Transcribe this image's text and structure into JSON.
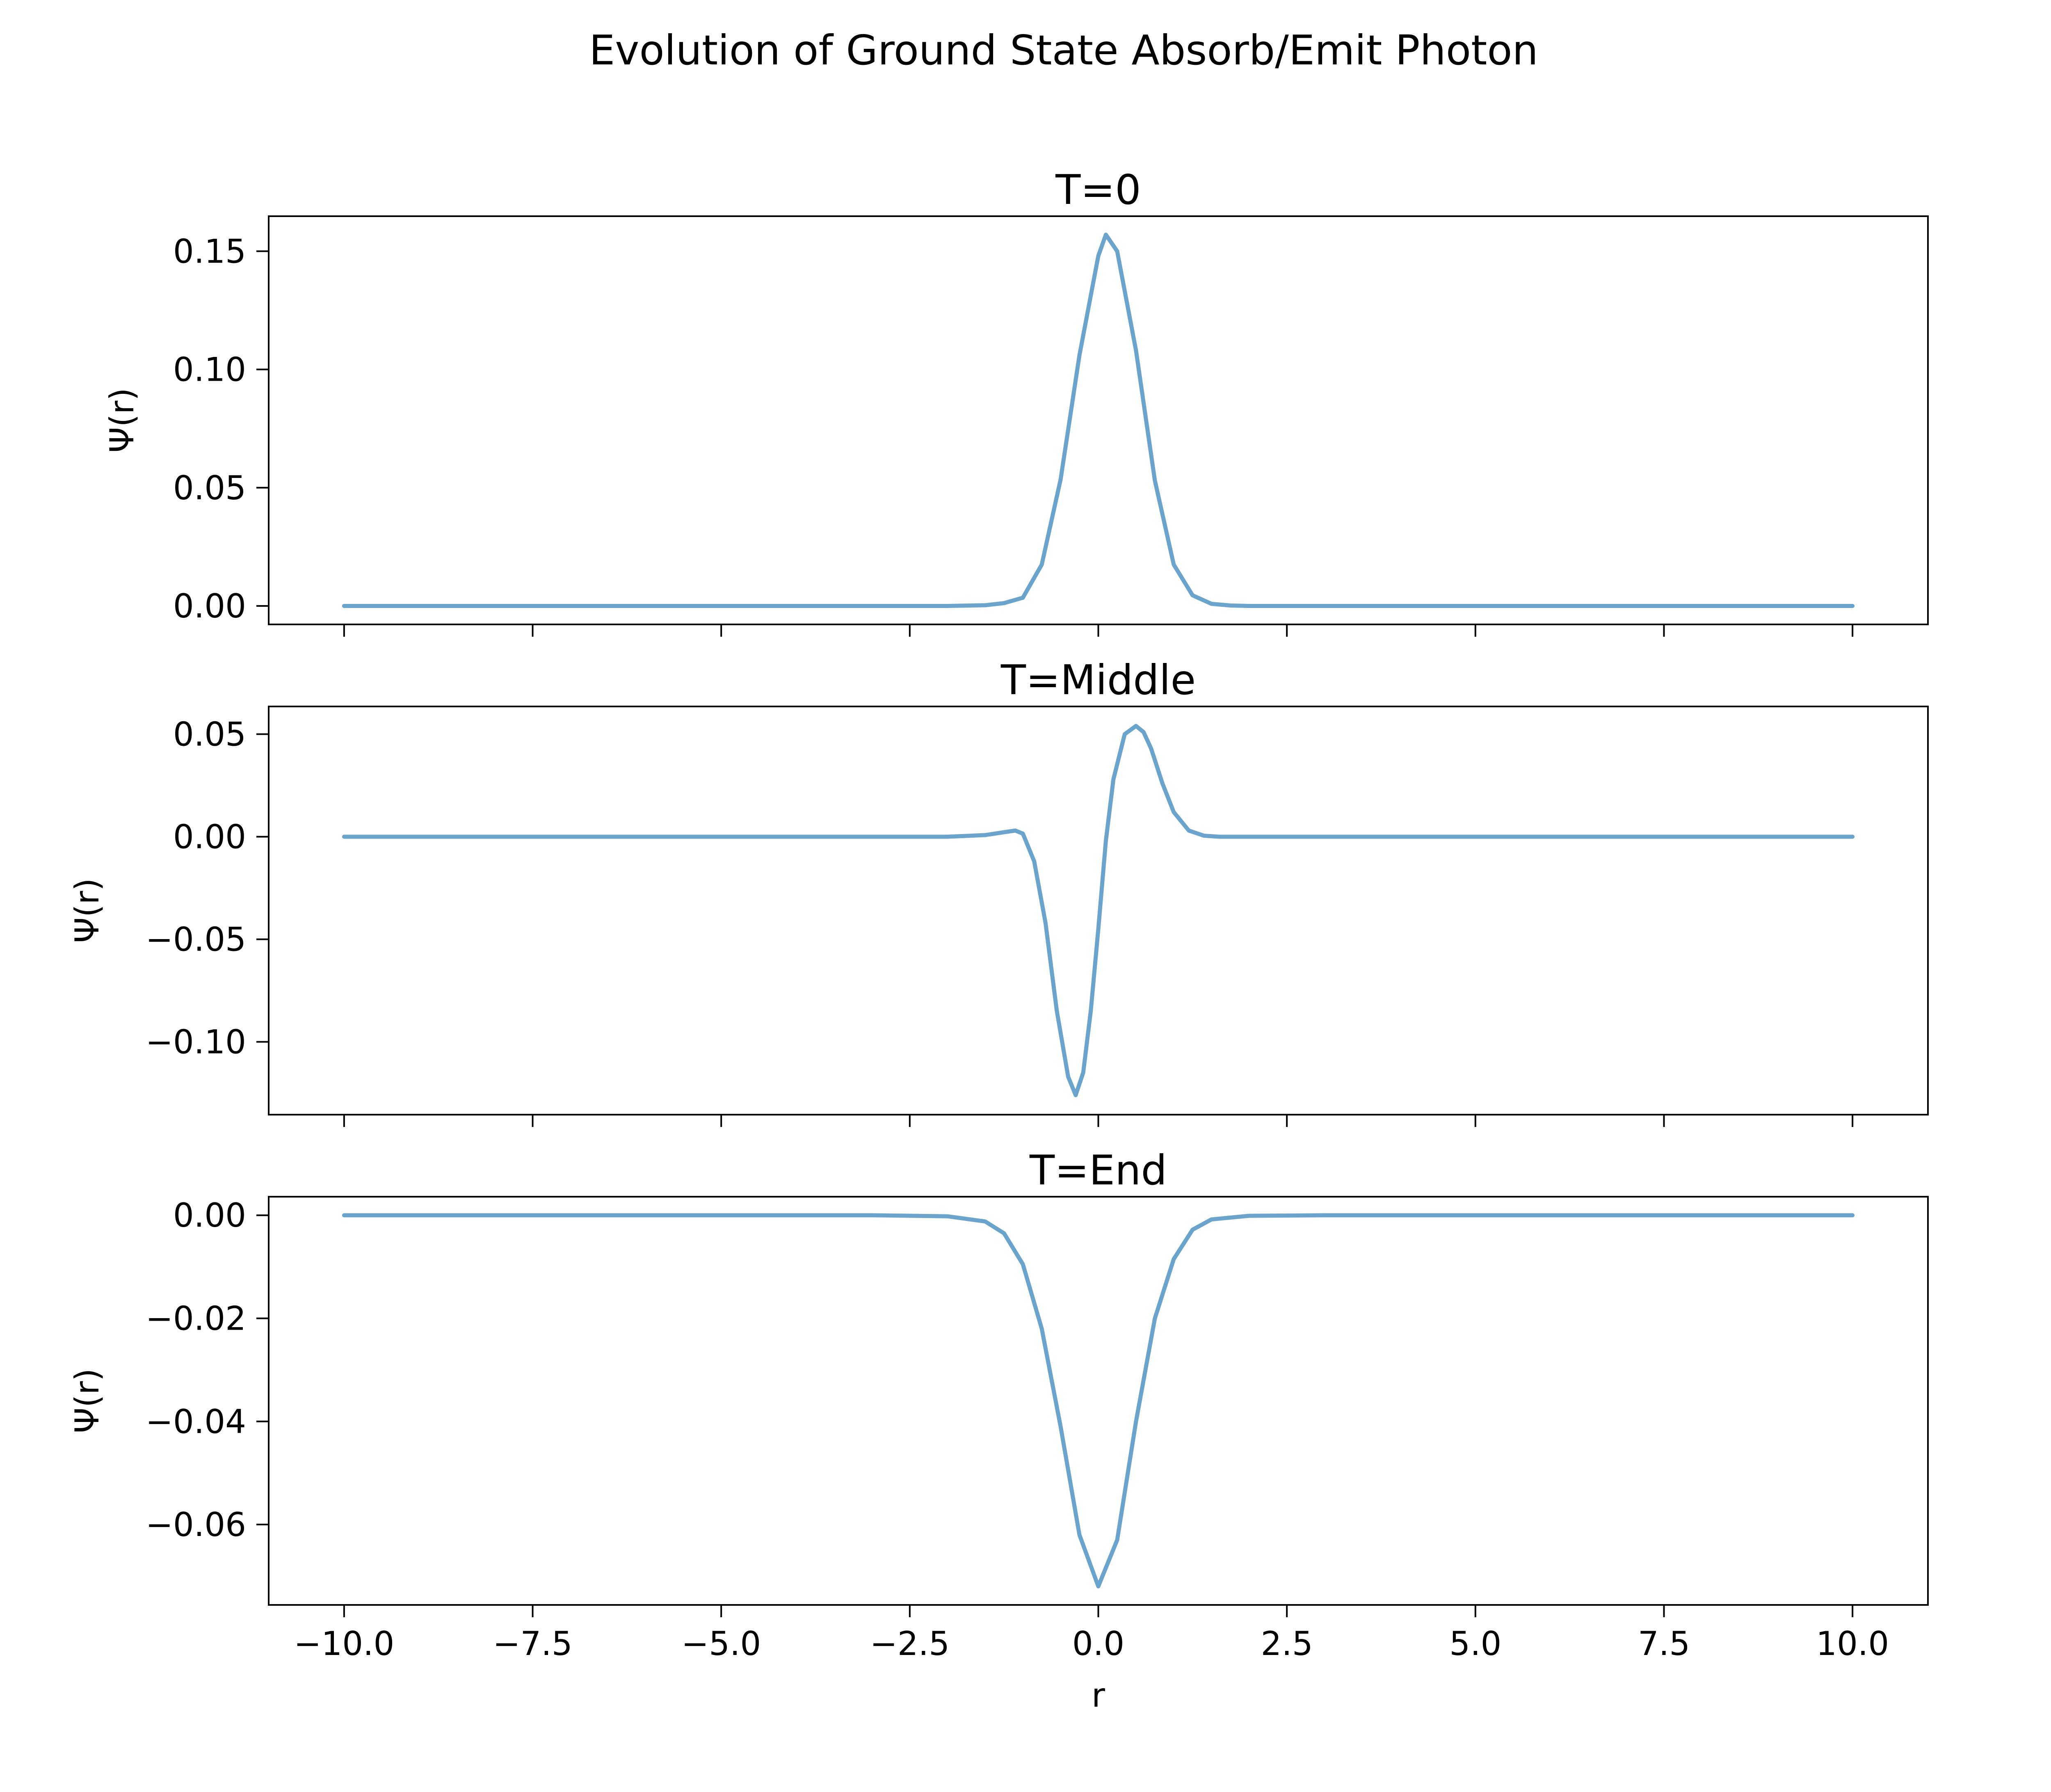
{
  "figure": {
    "suptitle": "Evolution of Ground State Absorb/Emit Photon",
    "line_color": "#6aa3cb",
    "background": "#ffffff"
  },
  "chart_data": [
    {
      "type": "line",
      "title": "T=0",
      "xlabel": "",
      "ylabel": "Ψ(r)",
      "xlim": [
        -11.0,
        11.0
      ],
      "ylim": [
        -0.0078,
        0.1648
      ],
      "x_ticks": [
        -10.0,
        -7.5,
        -5.0,
        -2.5,
        0.0,
        2.5,
        5.0,
        7.5,
        10.0
      ],
      "x_tick_labels": [],
      "y_ticks": [
        0.0,
        0.05,
        0.1,
        0.15
      ],
      "y_tick_labels": [
        "0.00",
        "0.05",
        "0.10",
        "0.15"
      ],
      "grid": false,
      "series": [
        {
          "x": [
            -10.0,
            -8.0,
            -6.0,
            -4.0,
            -2.0,
            -1.5,
            -1.25,
            -1.0,
            -0.75,
            -0.5,
            -0.25,
            0.0,
            0.1,
            0.25,
            0.5,
            0.75,
            1.0,
            1.25,
            1.5,
            1.75,
            2.0,
            4.0,
            6.0,
            8.0,
            10.0
          ],
          "y": [
            0.0,
            0.0,
            0.0,
            0.0,
            0.0,
            0.0003,
            0.0012,
            0.0035,
            0.0175,
            0.0535,
            0.106,
            0.148,
            0.157,
            0.15,
            0.108,
            0.053,
            0.0175,
            0.0045,
            0.0009,
            0.0002,
            0.0,
            0.0,
            0.0,
            0.0,
            0.0
          ]
        }
      ]
    },
    {
      "type": "line",
      "title": "T=Middle",
      "xlabel": "",
      "ylabel": "Ψ(r)",
      "xlim": [
        -11.0,
        11.0
      ],
      "ylim": [
        -0.1355,
        0.0635
      ],
      "x_ticks": [
        -10.0,
        -7.5,
        -5.0,
        -2.5,
        0.0,
        2.5,
        5.0,
        7.5,
        10.0
      ],
      "x_tick_labels": [],
      "y_ticks": [
        -0.1,
        -0.05,
        0.0,
        0.05
      ],
      "y_tick_labels": [
        "−0.10",
        "−0.05",
        "0.00",
        "0.05"
      ],
      "grid": false,
      "series": [
        {
          "x": [
            -10.0,
            -6.0,
            -3.0,
            -2.0,
            -1.5,
            -1.25,
            -1.1,
            -1.0,
            -0.85,
            -0.7,
            -0.55,
            -0.4,
            -0.3,
            -0.2,
            -0.1,
            0.0,
            0.1,
            0.2,
            0.35,
            0.5,
            0.6,
            0.7,
            0.85,
            1.0,
            1.2,
            1.4,
            1.6,
            2.0,
            6.0,
            10.0
          ],
          "y": [
            0.0,
            0.0,
            0.0,
            0.0,
            0.0008,
            0.0022,
            0.003,
            0.0015,
            -0.012,
            -0.042,
            -0.085,
            -0.117,
            -0.126,
            -0.115,
            -0.085,
            -0.045,
            -0.002,
            0.028,
            0.05,
            0.054,
            0.051,
            0.043,
            0.026,
            0.012,
            0.003,
            0.0005,
            0.0,
            0.0,
            0.0,
            0.0
          ]
        }
      ]
    },
    {
      "type": "line",
      "title": "T=End",
      "xlabel": "r",
      "ylabel": "Ψ(r)",
      "xlim": [
        -11.0,
        11.0
      ],
      "ylim": [
        -0.0756,
        0.0036
      ],
      "x_ticks": [
        -10.0,
        -7.5,
        -5.0,
        -2.5,
        0.0,
        2.5,
        5.0,
        7.5,
        10.0
      ],
      "x_tick_labels": [
        "−10.0",
        "−7.5",
        "−5.0",
        "−2.5",
        "0.0",
        "2.5",
        "5.0",
        "7.5",
        "10.0"
      ],
      "y_ticks": [
        -0.06,
        -0.04,
        -0.02,
        0.0
      ],
      "y_tick_labels": [
        "−0.06",
        "−0.04",
        "−0.02",
        "0.00"
      ],
      "grid": false,
      "series": [
        {
          "x": [
            -10.0,
            -6.0,
            -3.0,
            -2.0,
            -1.5,
            -1.25,
            -1.0,
            -0.75,
            -0.5,
            -0.25,
            0.0,
            0.25,
            0.5,
            0.75,
            1.0,
            1.25,
            1.5,
            2.0,
            3.0,
            6.0,
            10.0
          ],
          "y": [
            0.0,
            0.0,
            0.0,
            -0.0002,
            -0.0012,
            -0.0035,
            -0.0095,
            -0.022,
            -0.041,
            -0.062,
            -0.072,
            -0.063,
            -0.04,
            -0.02,
            -0.0085,
            -0.0028,
            -0.0008,
            -0.0001,
            0.0,
            0.0,
            0.0
          ]
        }
      ]
    }
  ]
}
